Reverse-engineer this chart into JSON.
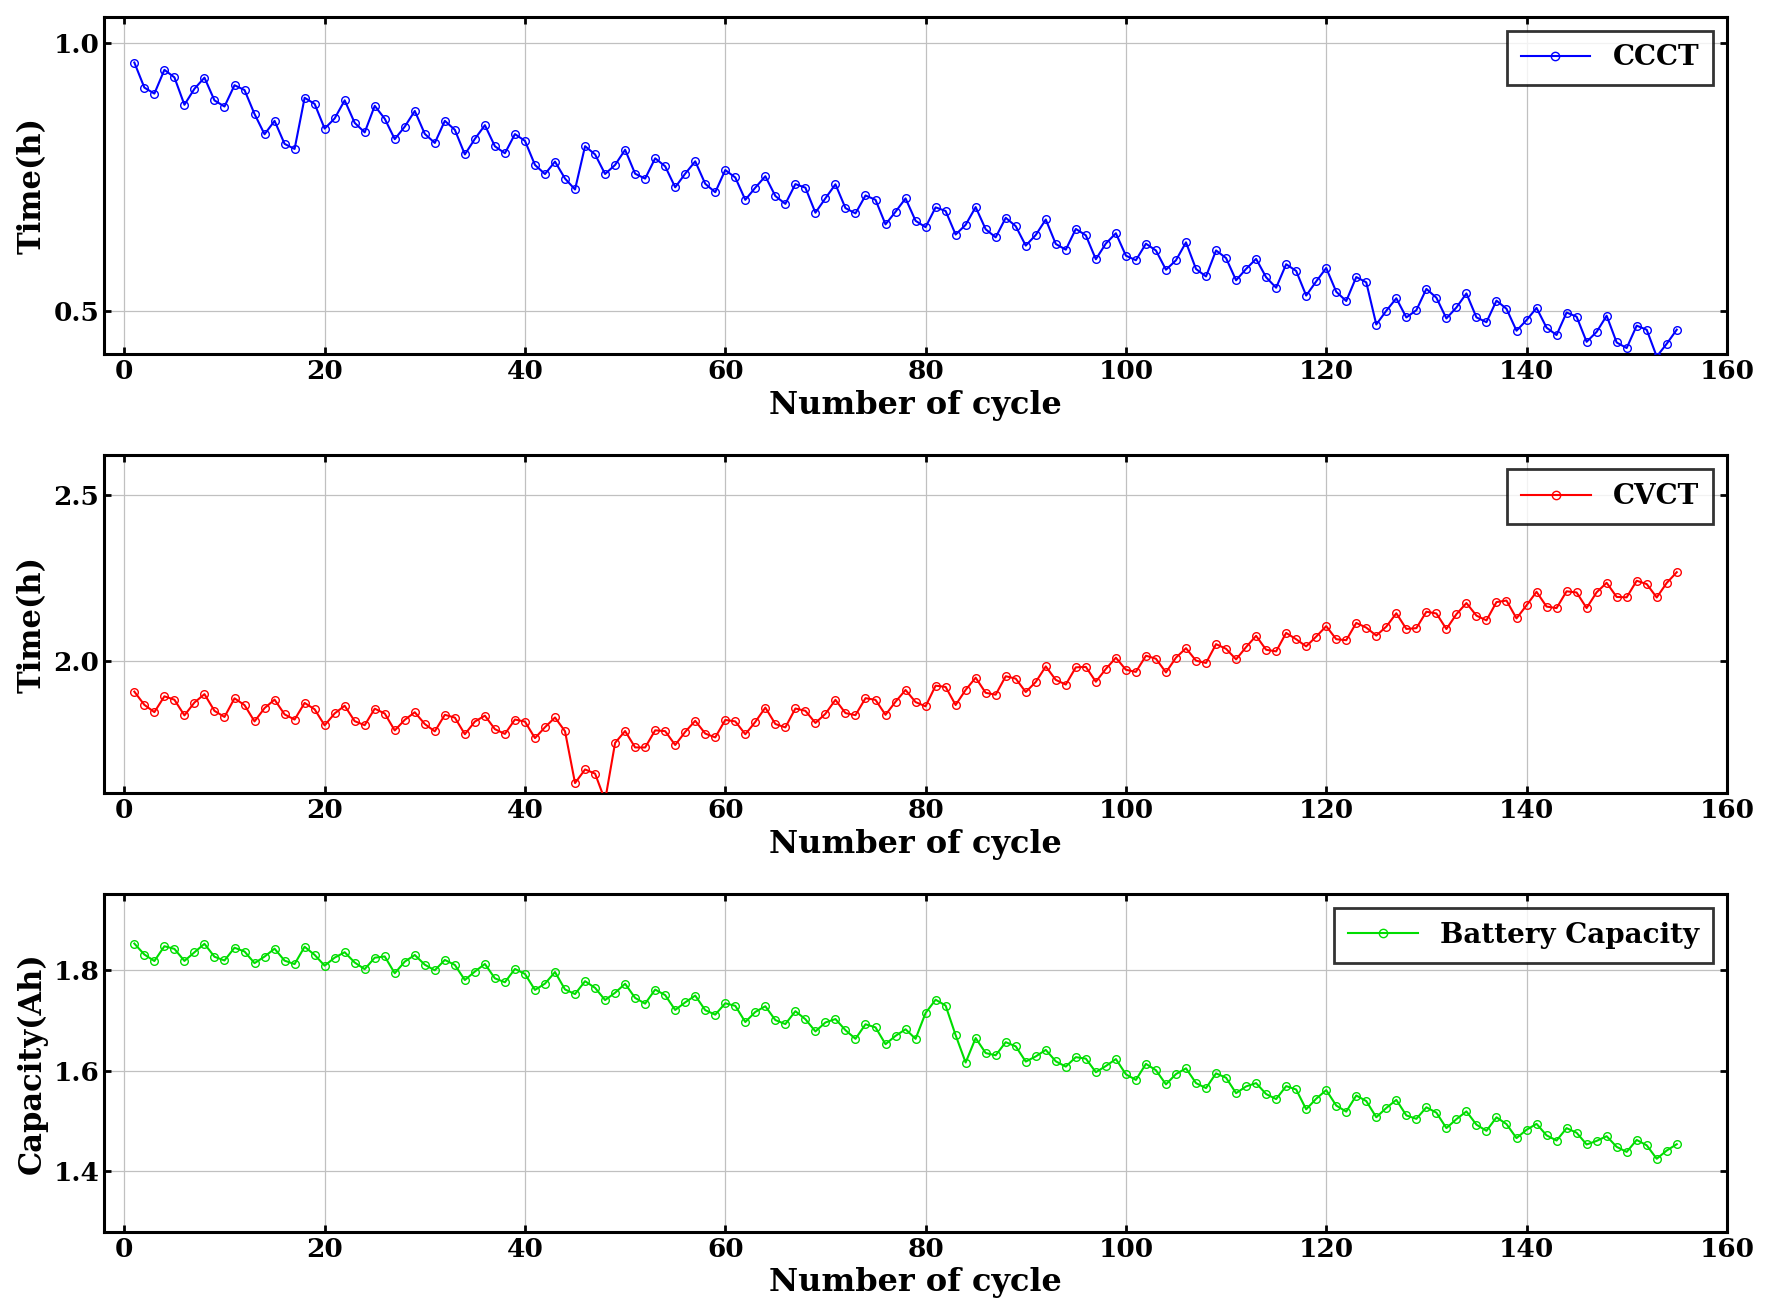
{
  "subplot1": {
    "ylabel": "Time(h)",
    "xlabel": "Number of cycle",
    "legend": "CCCT",
    "color": "#0000FF",
    "ylim": [
      0.42,
      1.05
    ],
    "yticks": [
      0.5,
      1.0
    ],
    "xlim": [
      -2,
      160
    ],
    "xticks": [
      0,
      20,
      40,
      60,
      80,
      100,
      120,
      140,
      160
    ]
  },
  "subplot2": {
    "ylabel": "Time(h)",
    "xlabel": "Number of cycle",
    "legend": "CVCT",
    "color": "#FF0000",
    "ylim": [
      1.6,
      2.62
    ],
    "yticks": [
      2.0,
      2.5
    ],
    "xlim": [
      -2,
      160
    ],
    "xticks": [
      0,
      20,
      40,
      60,
      80,
      100,
      120,
      140,
      160
    ]
  },
  "subplot3": {
    "ylabel": "Capacity(Ah)",
    "xlabel": "Number of cycle",
    "legend": "Battery Capacity",
    "color": "#00DD00",
    "ylim": [
      1.28,
      1.95
    ],
    "yticks": [
      1.4,
      1.6,
      1.8
    ],
    "xlim": [
      -2,
      160
    ],
    "xticks": [
      0,
      20,
      40,
      60,
      80,
      100,
      120,
      140,
      160
    ]
  },
  "figsize": [
    17.71,
    13.15
  ],
  "dpi": 100
}
